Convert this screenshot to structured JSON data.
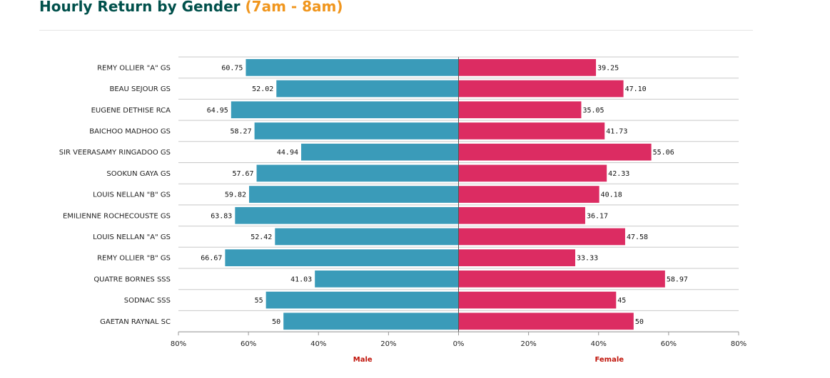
{
  "header": {
    "title": "Hourly Return by Gender",
    "subtitle": "(7am - 8am)"
  },
  "chart_data": {
    "type": "bar",
    "orientation": "horizontal-diverging",
    "categories": [
      "REMY OLLIER \"A\" GS",
      "BEAU SEJOUR GS",
      "EUGENE DETHISE RCA",
      "BAICHOO MADHOO GS",
      "SIR VEERASAMY RINGADOO GS",
      "SOOKUN GAYA GS",
      "LOUIS NELLAN \"B\" GS",
      "EMILIENNE ROCHECOUSTE GS",
      "LOUIS NELLAN \"A\" GS",
      "REMY OLLIER \"B\" GS",
      "QUATRE BORNES SSS",
      "SODNAC SSS",
      "GAETAN RAYNAL SC"
    ],
    "series": [
      {
        "name": "Male",
        "color": "#3a9bb9",
        "values": [
          60.75,
          52.02,
          64.95,
          58.27,
          44.94,
          57.67,
          59.82,
          63.83,
          52.42,
          66.67,
          41.03,
          55,
          50
        ],
        "labels": [
          "60.75",
          "52.02",
          "64.95",
          "58.27",
          "44.94",
          "57.67",
          "59.82",
          "63.83",
          "52.42",
          "66.67",
          "41.03",
          "55",
          "50"
        ]
      },
      {
        "name": "Female",
        "color": "#dc2c62",
        "values": [
          39.25,
          47.1,
          35.05,
          41.73,
          55.06,
          42.33,
          40.18,
          36.17,
          47.58,
          33.33,
          58.97,
          45,
          50
        ],
        "labels": [
          "39.25",
          "47.10",
          "35.05",
          "41.73",
          "55.06",
          "42.33",
          "40.18",
          "36.17",
          "47.58",
          "33.33",
          "58.97",
          "45",
          "50"
        ]
      }
    ],
    "xlim": [
      -80,
      80
    ],
    "xticks": [
      -80,
      -60,
      -40,
      -20,
      0,
      20,
      40,
      60,
      80
    ],
    "xtick_labels": [
      "80%",
      "60%",
      "40%",
      "20%",
      "0%",
      "20%",
      "40%",
      "60%",
      "80%"
    ],
    "left_axis_label": "Male",
    "right_axis_label": "Female",
    "axis_label_color": "#c0140a"
  }
}
